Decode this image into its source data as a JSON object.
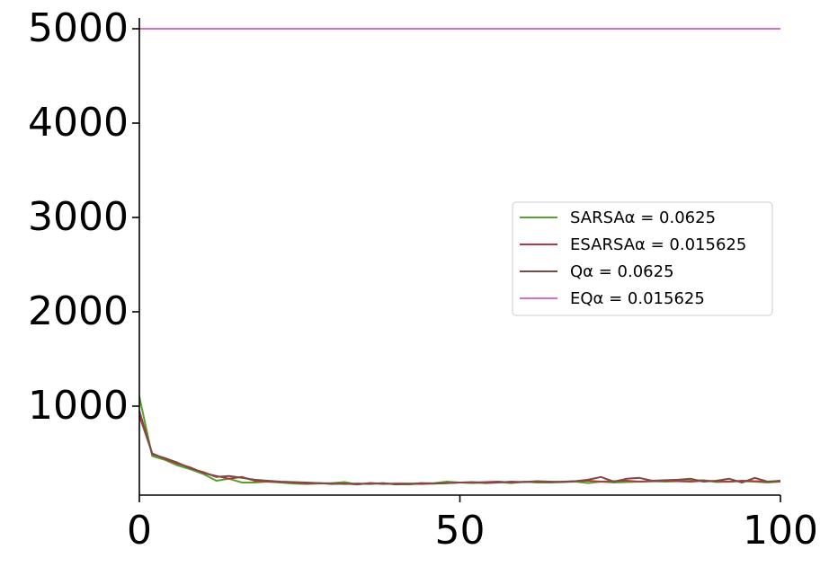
{
  "chart_data": {
    "type": "line",
    "title": "",
    "xlabel": "",
    "ylabel": "",
    "xlim": [
      0,
      100
    ],
    "ylim": [
      50,
      5100
    ],
    "x_ticks": [
      0,
      50,
      100
    ],
    "y_ticks": [
      1000,
      2000,
      3000,
      4000,
      5000
    ],
    "x_tick_labels": [
      "0",
      "50",
      "100"
    ],
    "y_tick_labels": [
      "1000",
      "2000",
      "3000",
      "4000",
      "5000"
    ],
    "legend_position": "center-right",
    "series": [
      {
        "name": "SARSAα = 0.0625",
        "color": "#5aa02c",
        "x": [
          0,
          2,
          4,
          6,
          8,
          10,
          12,
          14,
          16,
          18,
          20,
          22,
          24,
          26,
          28,
          30,
          32,
          34,
          36,
          38,
          40,
          42,
          44,
          46,
          48,
          50,
          52,
          54,
          56,
          58,
          60,
          62,
          64,
          66,
          68,
          70,
          72,
          74,
          76,
          78,
          80,
          82,
          84,
          86,
          88,
          90,
          92,
          94,
          96,
          98,
          100
        ],
        "y": [
          1100,
          470,
          430,
          370,
          330,
          280,
          210,
          230,
          190,
          190,
          200,
          190,
          180,
          175,
          180,
          185,
          195,
          170,
          185,
          180,
          175,
          170,
          180,
          185,
          200,
          190,
          185,
          190,
          195,
          185,
          200,
          190,
          190,
          195,
          200,
          185,
          200,
          190,
          195,
          200,
          205,
          200,
          205,
          210,
          215,
          195,
          200,
          205,
          200,
          190,
          200
        ]
      },
      {
        "name": "ESARSAα = 0.015625",
        "color": "#b03a3a",
        "x": [
          0,
          2,
          4,
          6,
          8,
          10,
          12,
          14,
          16,
          18,
          20,
          22,
          24,
          26,
          28,
          30,
          32,
          34,
          36,
          38,
          40,
          42,
          44,
          46,
          48,
          50,
          52,
          54,
          56,
          58,
          60,
          62,
          64,
          66,
          68,
          70,
          72,
          74,
          76,
          78,
          80,
          82,
          84,
          86,
          88,
          90,
          92,
          94,
          96,
          98,
          100
        ],
        "y": [
          900,
          500,
          440,
          390,
          350,
          290,
          260,
          230,
          250,
          210,
          200,
          195,
          190,
          180,
          185,
          175,
          180,
          170,
          185,
          175,
          180,
          180,
          175,
          180,
          185,
          190,
          190,
          195,
          200,
          190,
          195,
          200,
          195,
          200,
          205,
          210,
          200,
          205,
          210,
          200,
          205,
          210,
          205,
          200,
          210,
          205,
          200,
          210,
          205,
          200,
          205
        ]
      },
      {
        "name": "Qα = 0.0625",
        "color": "#7b4c45",
        "x": [
          0,
          2,
          4,
          6,
          8,
          10,
          12,
          14,
          16,
          18,
          20,
          22,
          24,
          26,
          28,
          30,
          32,
          34,
          36,
          38,
          40,
          42,
          44,
          46,
          48,
          50,
          52,
          54,
          56,
          58,
          60,
          62,
          64,
          66,
          68,
          70,
          72,
          74,
          76,
          78,
          80,
          82,
          84,
          86,
          88,
          90,
          92,
          94,
          96,
          98,
          100
        ],
        "y": [
          950,
          490,
          450,
          400,
          340,
          300,
          250,
          260,
          240,
          220,
          210,
          200,
          195,
          190,
          185,
          180,
          175,
          180,
          175,
          185,
          170,
          175,
          185,
          180,
          185,
          190,
          195,
          185,
          190,
          200,
          195,
          205,
          200,
          195,
          205,
          220,
          250,
          200,
          230,
          240,
          210,
          215,
          220,
          230,
          200,
          210,
          230,
          190,
          240,
          200,
          210
        ]
      },
      {
        "name": "EQα = 0.015625",
        "color": "#d66fc5",
        "x": [
          0,
          100
        ],
        "y": [
          5000,
          5000
        ]
      }
    ]
  }
}
